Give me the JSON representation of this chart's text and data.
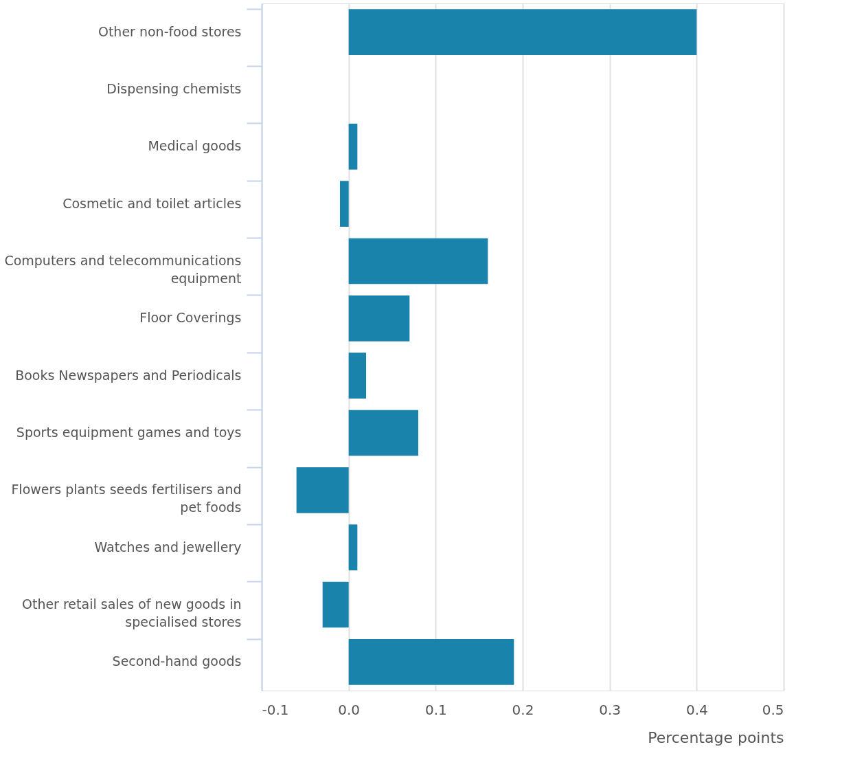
{
  "chart_data": {
    "type": "bar",
    "orientation": "horizontal",
    "xlabel": "Percentage points",
    "categories": [
      "Other non-food stores",
      "Dispensing chemists",
      "Medical goods",
      "Cosmetic and toilet articles",
      "Computers and telecommunications equipment",
      "Floor Coverings",
      "Books Newspapers and Periodicals",
      "Sports equipment games and toys",
      "Flowers plants seeds fertilisers and pet foods",
      "Watches and jewellery",
      "Other retail sales of new goods in specialised stores",
      "Second-hand goods"
    ],
    "values": [
      0.4,
      0,
      0.01,
      -0.01,
      0.16,
      0.07,
      0.02,
      0.08,
      -0.06,
      0.01,
      -0.03,
      0.19
    ],
    "color": "#1a83ab",
    "xlim": [
      -0.1,
      0.5
    ],
    "xticks": [
      -0.1,
      {
        "value": 0,
        "label": "0.0"
      },
      0.1,
      0.2,
      0.3,
      0.4,
      0.5
    ],
    "grid": "x"
  }
}
